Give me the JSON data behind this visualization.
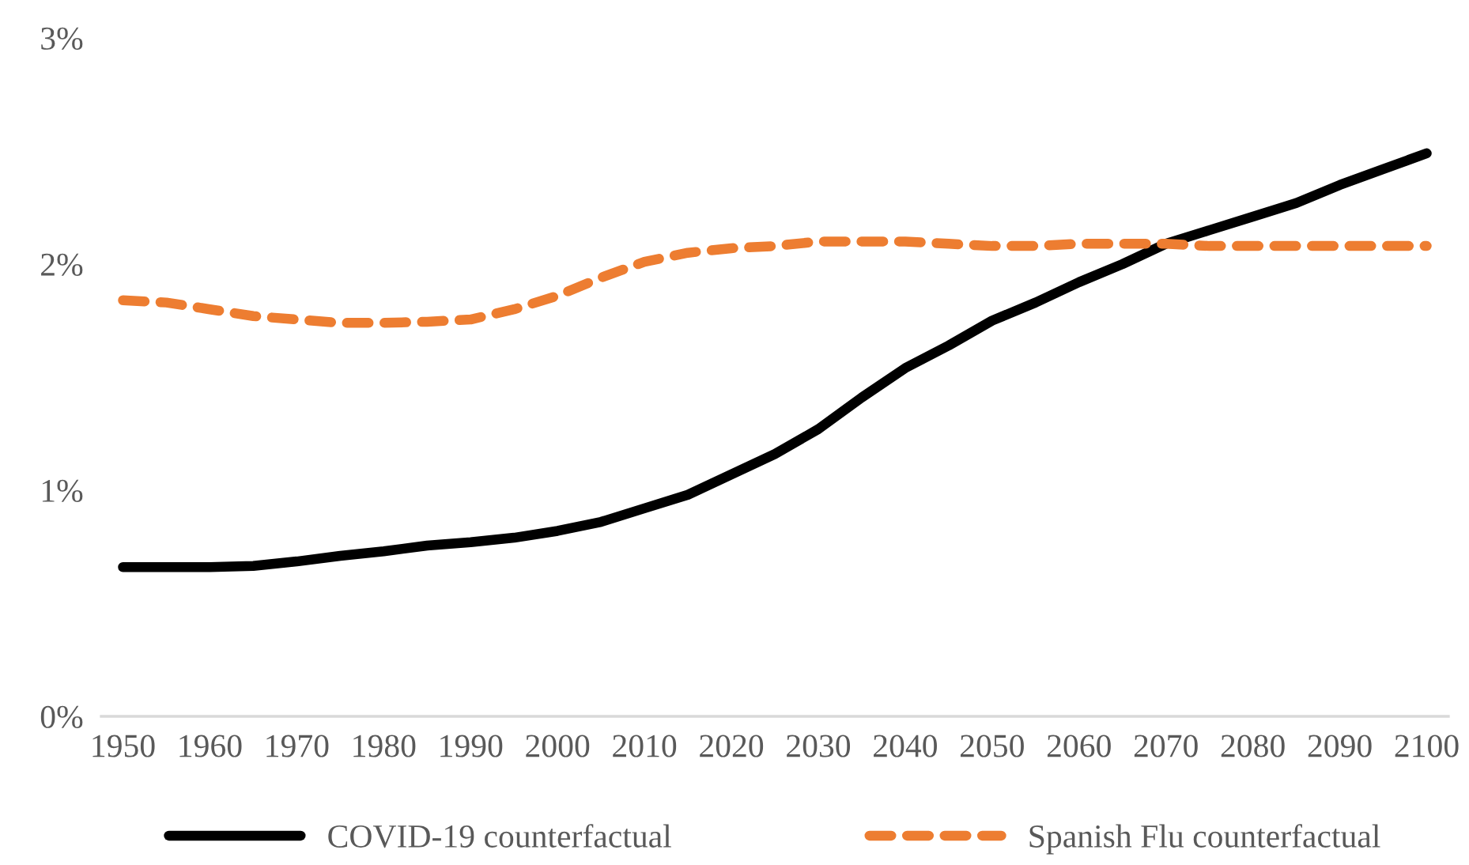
{
  "chart_data": {
    "type": "line",
    "x": [
      1950,
      1955,
      1960,
      1965,
      1970,
      1975,
      1980,
      1985,
      1990,
      1995,
      2000,
      2005,
      2010,
      2015,
      2020,
      2025,
      2030,
      2035,
      2040,
      2045,
      2050,
      2055,
      2060,
      2065,
      2070,
      2075,
      2080,
      2085,
      2090,
      2095,
      2100
    ],
    "series": [
      {
        "name": "COVID-19 counterfactual",
        "color": "#000000",
        "line_style": "solid",
        "values": [
          0.66,
          0.66,
          0.66,
          0.665,
          0.685,
          0.71,
          0.73,
          0.755,
          0.77,
          0.79,
          0.82,
          0.86,
          0.92,
          0.98,
          1.07,
          1.16,
          1.27,
          1.41,
          1.54,
          1.64,
          1.75,
          1.83,
          1.92,
          2.0,
          2.09,
          2.15,
          2.21,
          2.27,
          2.35,
          2.42,
          2.49
        ]
      },
      {
        "name": "Spanish Flu counterfactual",
        "color": "#ed7d31",
        "line_style": "dashed",
        "values": [
          1.84,
          1.83,
          1.8,
          1.77,
          1.755,
          1.74,
          1.74,
          1.745,
          1.755,
          1.8,
          1.86,
          1.94,
          2.01,
          2.05,
          2.07,
          2.08,
          2.1,
          2.1,
          2.1,
          2.09,
          2.08,
          2.08,
          2.09,
          2.09,
          2.09,
          2.08,
          2.08,
          2.08,
          2.08,
          2.08,
          2.08
        ]
      }
    ],
    "xlim": [
      1947.5,
      2102.5
    ],
    "xticks": [
      1950,
      1960,
      1970,
      1980,
      1990,
      2000,
      2010,
      2020,
      2030,
      2040,
      2050,
      2060,
      2070,
      2080,
      2090,
      2100
    ],
    "ylim": [
      0,
      3
    ],
    "yticks": [
      {
        "value": 0,
        "label": "0%"
      },
      {
        "value": 1,
        "label": "1%"
      },
      {
        "value": 2,
        "label": "2%"
      },
      {
        "value": 3,
        "label": "3%"
      }
    ],
    "grid": false,
    "legend": "bottom"
  }
}
